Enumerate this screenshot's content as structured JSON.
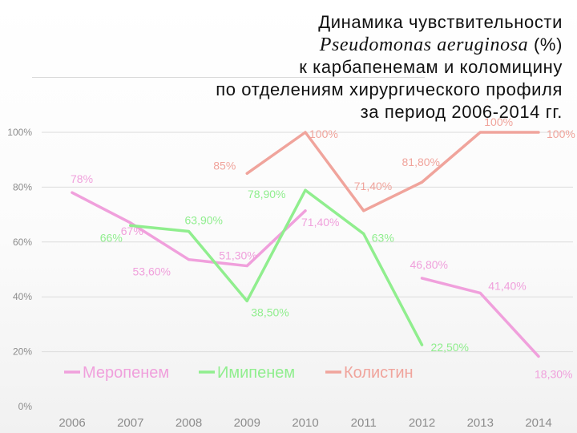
{
  "title": {
    "line1": "Динамика чувствительности",
    "line2_organism": "Pseudomonas aeruginosa",
    "line2_unit": "(%)",
    "line3": "к карбапенемам и коломицину",
    "line4": "по отделениям хирургического профиля",
    "line5": "за период 2006-2014 гг."
  },
  "chart_data": {
    "type": "line",
    "categories": [
      "2006",
      "2007",
      "2008",
      "2009",
      "2010",
      "2011",
      "2012",
      "2013",
      "2014"
    ],
    "ylim": [
      0,
      100
    ],
    "yticks": [
      {
        "value": 0,
        "label": "0%"
      },
      {
        "value": 20,
        "label": "20%"
      },
      {
        "value": 40,
        "label": "40%"
      },
      {
        "value": 60,
        "label": "60%"
      },
      {
        "value": 80,
        "label": "80%"
      },
      {
        "value": 100,
        "label": "100%"
      }
    ],
    "grid": true,
    "legend_position": "bottom-left",
    "series": [
      {
        "name": "Меропенем",
        "color": "#f0a0dc",
        "segments": [
          [
            0,
            4
          ],
          [
            6,
            9
          ]
        ],
        "values": [
          78,
          67,
          53.6,
          51.3,
          71.4,
          null,
          46.8,
          41.4,
          18.3
        ],
        "labels": [
          "78%",
          "67%",
          "53,60%",
          "51,30%",
          "71,40%",
          null,
          "46,80%",
          "41,40%",
          "18,30%"
        ]
      },
      {
        "name": "Имипенем",
        "color": "#90ee8e",
        "segments": [
          [
            1,
            6
          ]
        ],
        "values": [
          null,
          66,
          63.9,
          38.5,
          78.9,
          63,
          22.5,
          null,
          null
        ],
        "labels": [
          null,
          "66%",
          "63,90%",
          "38,50%",
          "78,90%",
          "63%",
          "22,50%",
          null,
          null
        ]
      },
      {
        "name": "Колистин",
        "color": "#f0a49c",
        "segments": [
          [
            3,
            8
          ]
        ],
        "values": [
          null,
          null,
          null,
          85,
          100,
          71.4,
          81.8,
          100,
          100
        ],
        "labels": [
          null,
          null,
          null,
          "85%",
          "100%",
          "71,40%",
          "81,80%",
          "100%",
          "100%"
        ]
      }
    ]
  }
}
